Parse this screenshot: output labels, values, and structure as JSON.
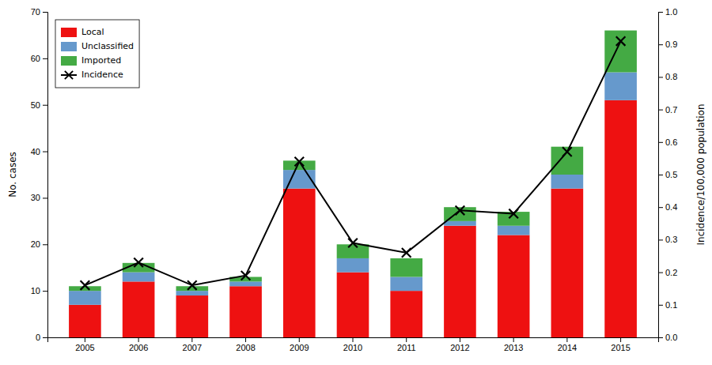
{
  "chart_data": {
    "type": "bar",
    "stacked": true,
    "categories": [
      "2005",
      "2006",
      "2007",
      "2008",
      "2009",
      "2010",
      "2011",
      "2012",
      "2013",
      "2014",
      "2015"
    ],
    "series": [
      {
        "name": "Local",
        "color": "#ee1111",
        "values": [
          7,
          12,
          9,
          11,
          32,
          14,
          10,
          24,
          22,
          32,
          51
        ]
      },
      {
        "name": "Unclassified",
        "color": "#6699cc",
        "values": [
          3,
          2,
          1,
          1,
          4,
          3,
          3,
          1,
          2,
          3,
          6
        ]
      },
      {
        "name": "Imported",
        "color": "#44aa44",
        "values": [
          1,
          2,
          1,
          1,
          2,
          3,
          4,
          3,
          3,
          6,
          9
        ]
      },
      {
        "name": "Incidence",
        "type": "line",
        "axis": "y2",
        "color": "#000000",
        "marker": "x",
        "values": [
          0.16,
          0.23,
          0.16,
          0.19,
          0.54,
          0.29,
          0.26,
          0.39,
          0.38,
          0.57,
          0.91
        ]
      }
    ],
    "ylabel": "No. cases",
    "y2label": "Incidence/100,000 population",
    "ylim": [
      0,
      70
    ],
    "yticks": [
      0,
      10,
      20,
      30,
      40,
      50,
      60,
      70
    ],
    "y2lim": [
      0,
      1.0
    ],
    "y2ticks": [
      {
        "value": 0,
        "label": "0.0"
      },
      0.1,
      0.2,
      0.3,
      0.4,
      0.5,
      0.6,
      0.7,
      0.8,
      0.9,
      {
        "value": 1.0,
        "label": "1.0"
      }
    ],
    "grid": false,
    "legend": "upper left"
  }
}
